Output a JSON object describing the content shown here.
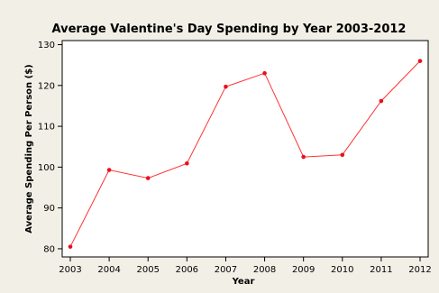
{
  "chart_data": {
    "type": "line",
    "title": "Average Valentine's Day Spending by Year 2003-2012",
    "xlabel": "Year",
    "ylabel": "Average Spending Per Person ($)",
    "x": [
      2003,
      2004,
      2005,
      2006,
      2007,
      2008,
      2009,
      2010,
      2011,
      2012
    ],
    "series": [
      {
        "values": [
          80.5,
          99.3,
          97.3,
          100.9,
          119.7,
          123.0,
          102.5,
          103.0,
          116.2,
          126.0
        ]
      }
    ],
    "yticks": [
      80,
      90,
      100,
      110,
      120,
      130
    ],
    "ylim": [
      78,
      131
    ],
    "grid": false,
    "colors": {
      "background": "#f2efe6",
      "plot_area": "#ffffff",
      "line": "#ff3333",
      "marker": "#e8101f"
    }
  }
}
